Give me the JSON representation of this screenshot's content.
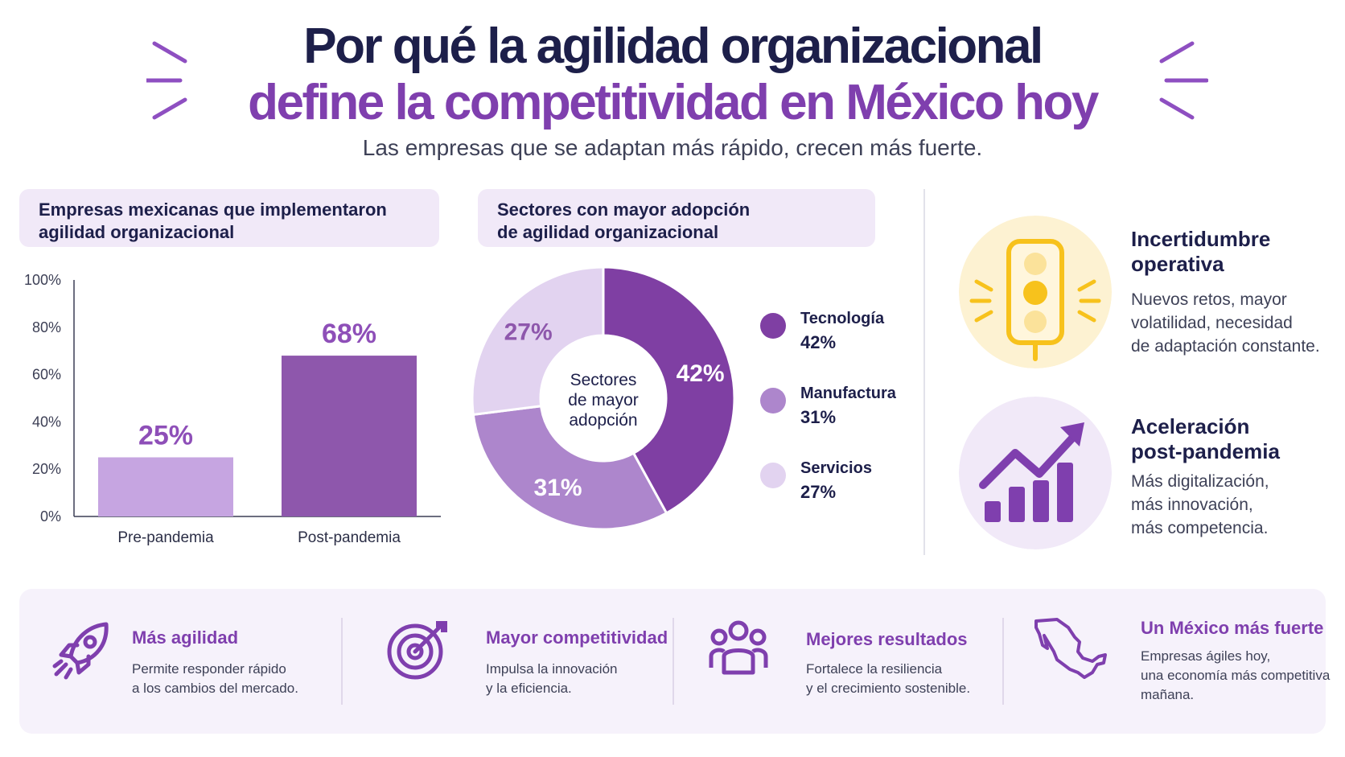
{
  "header": {
    "title_line1": "Por qué la agilidad organizacional",
    "title_line2": "define la competitividad en México hoy",
    "subtitle": "Las empresas que se adaptan más rápido, crecen más fuerte."
  },
  "panels": {
    "bar_title": [
      "Empresas mexicanas que implementaron",
      "agilidad organizacional"
    ],
    "donut_title": [
      "Sectores con mayor adopción",
      "de agilidad organizacional"
    ]
  },
  "chart_data": [
    {
      "type": "bar",
      "title": "Empresas mexicanas que implementaron agilidad organizacional",
      "categories": [
        "Pre-pandemia",
        "Post-pandemia"
      ],
      "values": [
        25,
        68
      ],
      "data_labels": [
        "25%",
        "68%"
      ],
      "bar_colors": [
        "#c6a5e1",
        "#8e57ac"
      ],
      "ylim": [
        0,
        100
      ],
      "yticks": [
        "0%",
        "20%",
        "40%",
        "60%",
        "80%",
        "100%"
      ],
      "ytick_values": [
        0,
        20,
        40,
        60,
        80,
        100
      ],
      "grid": false,
      "legend": false
    },
    {
      "type": "pie",
      "title": "Sectores con mayor adopción de agilidad organizacional",
      "center_label": [
        "Sectores",
        "de mayor",
        "adopción"
      ],
      "labels": [
        "Tecnología",
        "Manufactura",
        "Servicios"
      ],
      "values": [
        42,
        31,
        27
      ],
      "data_labels": [
        "42%",
        "31%",
        "27%"
      ],
      "colors": [
        "#7f3fa3",
        "#ad86cc",
        "#e2d3f0"
      ],
      "label_colors": [
        "#ffffff",
        "#ffffff",
        "#8e57ac"
      ],
      "legend": "right"
    }
  ],
  "features": [
    {
      "icon": "traffic-light-icon",
      "title": [
        "Incertidumbre",
        "operativa"
      ],
      "desc": [
        "Nuevos retos, mayor",
        "volatilidad, necesidad",
        "de adaptación constante."
      ],
      "accent": "#f7c21c"
    },
    {
      "icon": "growth-chart-icon",
      "title": [
        "Aceleración",
        "post-pandemia"
      ],
      "desc": [
        "Más digitalización,",
        "más innovación,",
        "más competencia."
      ],
      "accent": "#7f3fae"
    }
  ],
  "bottom": [
    {
      "icon": "rocket-icon",
      "title": "Más agilidad",
      "desc": [
        "Permite responder rápido",
        "a los cambios del mercado."
      ]
    },
    {
      "icon": "target-icon",
      "title": "Mayor competitividad",
      "desc": [
        "Impulsa la innovación",
        "y la eficiencia."
      ]
    },
    {
      "icon": "people-icon",
      "title": "Mejores resultados",
      "desc": [
        "Fortalece la resiliencia",
        "y el crecimiento sostenible."
      ]
    },
    {
      "icon": "mexico-map-icon",
      "title": "Un México más fuerte",
      "desc": [
        "Empresas ágiles hoy,",
        "una economía más competitiva",
        "mañana."
      ]
    }
  ],
  "colors": {
    "navy": "#1d1f4a",
    "purple": "#7f3fae",
    "lavender_bg": "#f1e9f8",
    "yellow": "#f7c21c"
  }
}
